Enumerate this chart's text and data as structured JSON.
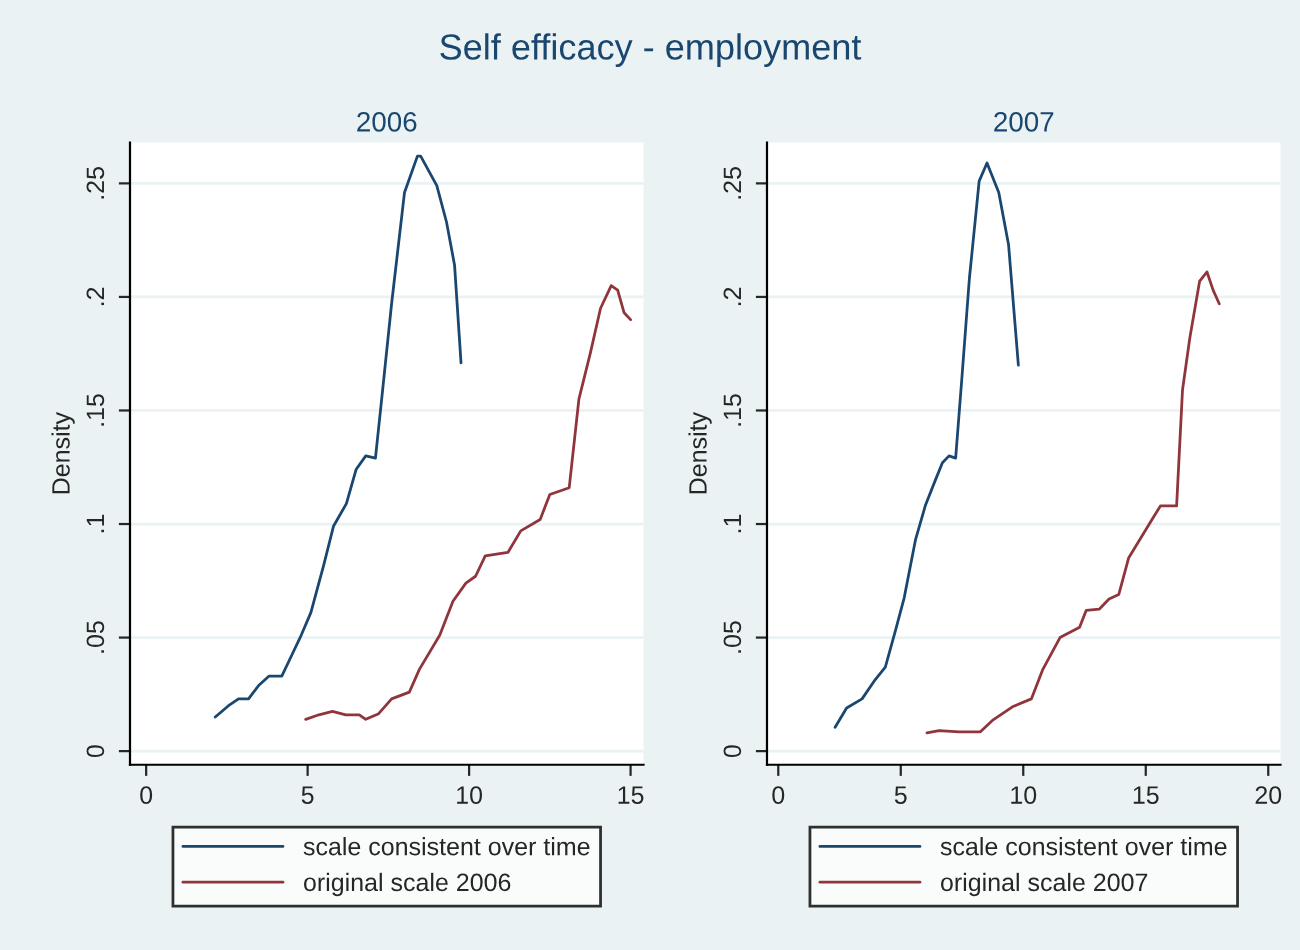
{
  "chart_data": [
    {
      "type": "line",
      "title": "Self efficacy - employment",
      "subtitle": "2006",
      "ylabel": "Density",
      "xlim": [
        -0.5,
        15.4
      ],
      "xticks": [
        0,
        5,
        10,
        15
      ],
      "ylim": [
        -0.006,
        0.268
      ],
      "yticks": [
        {
          "value": 0,
          "label": "0"
        },
        {
          "value": 0.05,
          "label": ".05"
        },
        {
          "value": 0.1,
          "label": ".1"
        },
        {
          "value": 0.15,
          "label": ".15"
        },
        {
          "value": 0.2,
          "label": ".2"
        },
        {
          "value": 0.25,
          "label": ".25"
        }
      ],
      "grid": "y",
      "legend": "bottom",
      "series": [
        {
          "name": "scale consistent over time",
          "color": "#1a476f",
          "x": [
            2.14,
            2.55,
            2.86,
            3.17,
            3.49,
            3.8,
            4.2,
            4.5,
            4.8,
            5.1,
            5.5,
            5.8,
            6.2,
            6.5,
            6.8,
            7.1,
            7.3,
            7.6,
            8.0,
            8.4,
            8.5,
            9.0,
            9.3,
            9.55,
            9.75
          ],
          "values": [
            0.015,
            0.02,
            0.023,
            0.023,
            0.029,
            0.033,
            0.033,
            0.042,
            0.051,
            0.061,
            0.082,
            0.099,
            0.109,
            0.124,
            0.13,
            0.129,
            0.156,
            0.197,
            0.246,
            0.262,
            0.262,
            0.249,
            0.233,
            0.214,
            0.171
          ]
        },
        {
          "name": "original scale 2006",
          "color": "#90353b",
          "x": [
            4.94,
            5.35,
            5.77,
            6.18,
            6.6,
            6.8,
            7.2,
            7.6,
            8.15,
            8.46,
            9.09,
            9.5,
            9.9,
            10.2,
            10.5,
            11.2,
            11.6,
            12.2,
            12.5,
            13.1,
            13.4,
            13.75,
            14.07,
            14.4,
            14.6,
            14.8,
            15.0
          ],
          "values": [
            0.014,
            0.016,
            0.0175,
            0.016,
            0.016,
            0.014,
            0.0165,
            0.023,
            0.026,
            0.036,
            0.051,
            0.066,
            0.074,
            0.077,
            0.086,
            0.0875,
            0.097,
            0.102,
            0.113,
            0.116,
            0.155,
            0.175,
            0.195,
            0.205,
            0.203,
            0.193,
            0.19
          ]
        }
      ]
    },
    {
      "type": "line",
      "subtitle": "2007",
      "ylabel": "Density",
      "xlim": [
        -0.46,
        20.5
      ],
      "xticks": [
        0,
        5,
        10,
        15,
        20
      ],
      "ylim": [
        -0.006,
        0.268
      ],
      "yticks": [
        {
          "value": 0,
          "label": "0"
        },
        {
          "value": 0.05,
          "label": ".05"
        },
        {
          "value": 0.1,
          "label": ".1"
        },
        {
          "value": 0.15,
          "label": ".15"
        },
        {
          "value": 0.2,
          "label": ".2"
        },
        {
          "value": 0.25,
          "label": ".25"
        }
      ],
      "grid": "y",
      "legend": "bottom",
      "series": [
        {
          "name": "scale consistent over time",
          "color": "#1a476f",
          "x": [
            2.32,
            2.79,
            3.42,
            3.96,
            4.37,
            4.78,
            5.14,
            5.6,
            6.0,
            6.4,
            6.7,
            6.97,
            7.24,
            7.5,
            7.8,
            8.2,
            8.52,
            9.0,
            9.4,
            9.8
          ],
          "values": [
            0.0105,
            0.019,
            0.023,
            0.0315,
            0.037,
            0.053,
            0.0675,
            0.093,
            0.108,
            0.119,
            0.127,
            0.13,
            0.129,
            0.165,
            0.208,
            0.251,
            0.259,
            0.246,
            0.223,
            0.17
          ]
        },
        {
          "name": "original scale 2007",
          "color": "#90353b",
          "x": [
            6.07,
            6.56,
            7.38,
            8.25,
            8.74,
            9.56,
            10.33,
            10.8,
            11.5,
            12.3,
            12.57,
            13.1,
            13.5,
            13.9,
            14.3,
            15.2,
            15.6,
            16.26,
            16.5,
            16.8,
            17.2,
            17.5,
            17.75,
            18.0
          ],
          "values": [
            0.008,
            0.009,
            0.0085,
            0.0085,
            0.0135,
            0.0195,
            0.023,
            0.036,
            0.05,
            0.0545,
            0.062,
            0.0625,
            0.067,
            0.069,
            0.085,
            0.101,
            0.108,
            0.108,
            0.159,
            0.182,
            0.207,
            0.211,
            0.203,
            0.197
          ]
        }
      ]
    }
  ]
}
